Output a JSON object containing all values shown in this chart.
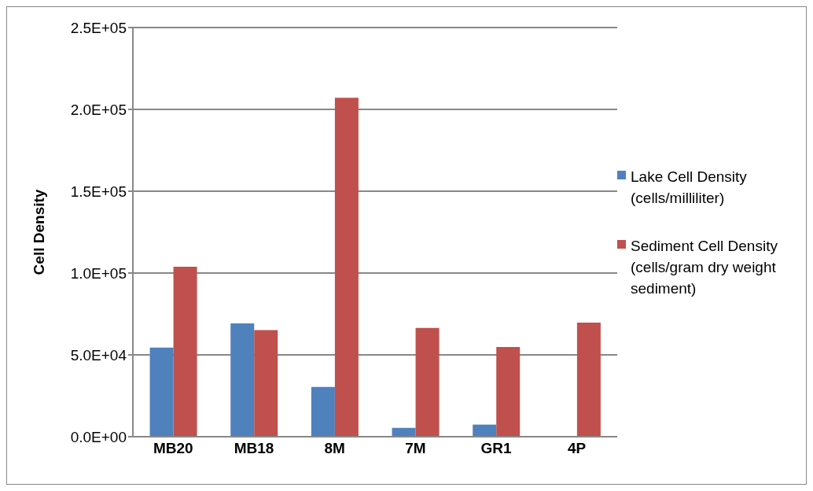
{
  "chart_data": {
    "type": "bar",
    "ylabel": "Cell Density",
    "categories": [
      "MB20",
      "MB18",
      "8M",
      "7M",
      "GR1",
      "4P"
    ],
    "series": [
      {
        "name": "Lake Cell Density (cells/milliliter)",
        "color": "#4f81bd",
        "values": [
          54500,
          69200,
          30400,
          5400,
          7400,
          null
        ]
      },
      {
        "name": "Sediment Cell Density (cells/gram dry weight sediment)",
        "color": "#c0504d",
        "values": [
          103800,
          65100,
          207100,
          66500,
          54800,
          69700
        ]
      }
    ],
    "ylim": [
      0,
      250000
    ],
    "yticks": [
      {
        "value": 0,
        "label": "0.0E+00"
      },
      {
        "value": 50000,
        "label": "5.0E+04"
      },
      {
        "value": 100000,
        "label": "1.0E+05"
      },
      {
        "value": 150000,
        "label": "1.5E+05"
      },
      {
        "value": 200000,
        "label": "2.0E+05"
      },
      {
        "value": 250000,
        "label": "2.5E+05"
      }
    ],
    "grid": "y",
    "legend": "right"
  }
}
